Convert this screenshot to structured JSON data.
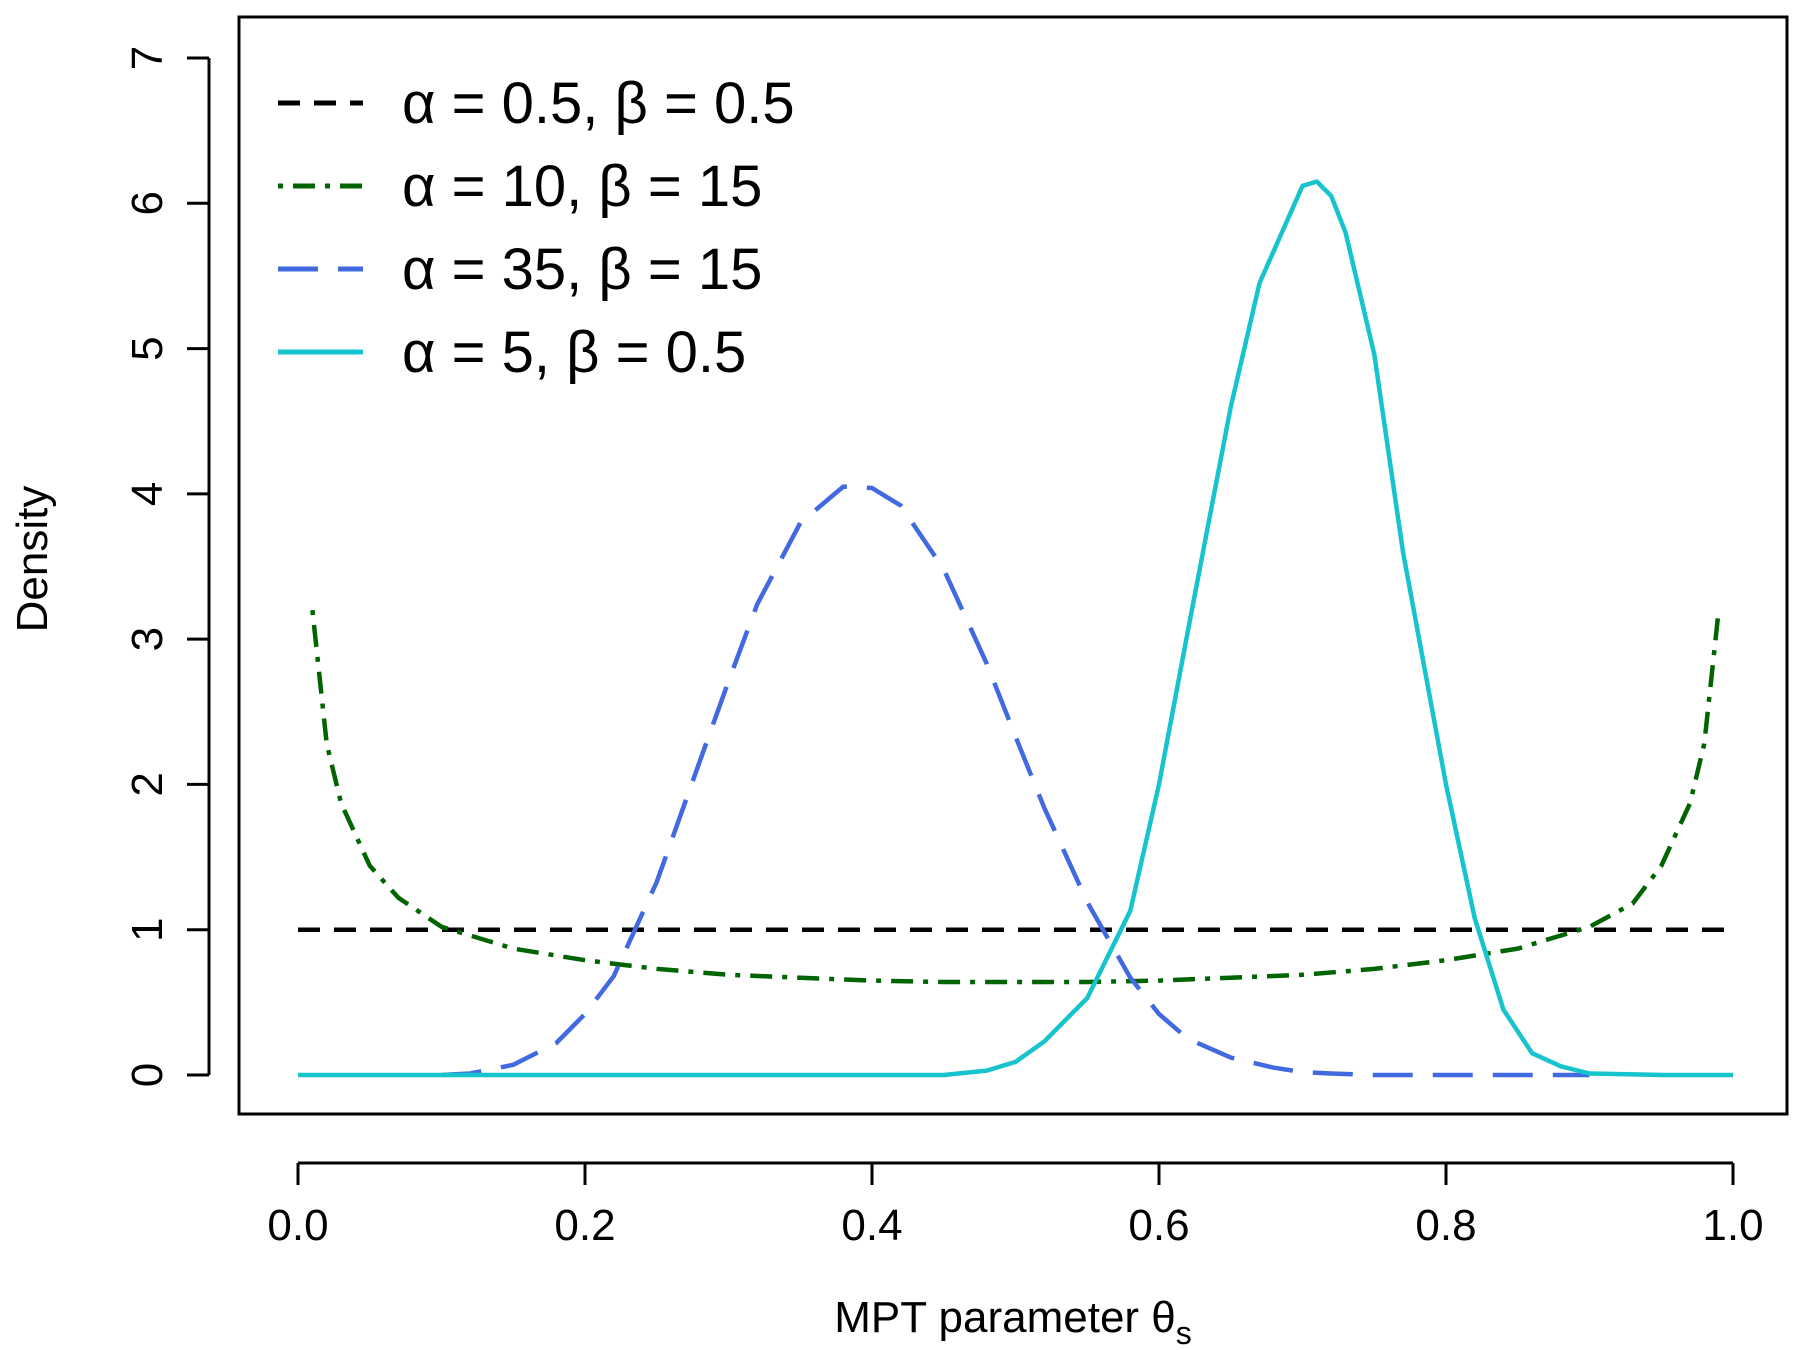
{
  "chart_data": {
    "type": "line",
    "title": "",
    "xlabel": "MPT parameter θ",
    "xlabel_subscript": "s",
    "ylabel": "Density",
    "xlim": [
      0.0,
      1.0
    ],
    "ylim": [
      0,
      7
    ],
    "x_ticks": [
      0.0,
      0.2,
      0.4,
      0.6,
      0.8,
      1.0
    ],
    "x_tick_labels": [
      "0.0",
      "0.2",
      "0.4",
      "0.6",
      "0.8",
      "1.0"
    ],
    "y_ticks": [
      0,
      1,
      2,
      3,
      4,
      5,
      6,
      7
    ],
    "y_tick_labels": [
      "0",
      "1",
      "2",
      "3",
      "4",
      "5",
      "6",
      "7"
    ],
    "grid": false,
    "legend_position": "top-left",
    "series": [
      {
        "name": "α = 0.5, β = 0.5",
        "color": "#000000",
        "dash": "dashed",
        "x": [
          0.0,
          0.1,
          0.2,
          0.3,
          0.4,
          0.5,
          0.6,
          0.7,
          0.8,
          0.9,
          1.0
        ],
        "y": [
          1.0,
          1.0,
          1.0,
          1.0,
          1.0,
          1.0,
          1.0,
          1.0,
          1.0,
          1.0,
          1.0
        ]
      },
      {
        "name": "α = 10, β = 15",
        "color": "#006400",
        "dash": "dotdash",
        "x": [
          0.01,
          0.02,
          0.03,
          0.05,
          0.07,
          0.1,
          0.15,
          0.2,
          0.25,
          0.3,
          0.35,
          0.4,
          0.45,
          0.5,
          0.55,
          0.6,
          0.65,
          0.7,
          0.75,
          0.8,
          0.85,
          0.9,
          0.93,
          0.95,
          0.97,
          0.98,
          0.99
        ],
        "y": [
          3.2,
          2.28,
          1.87,
          1.44,
          1.22,
          1.02,
          0.87,
          0.79,
          0.73,
          0.69,
          0.67,
          0.65,
          0.64,
          0.64,
          0.64,
          0.65,
          0.67,
          0.69,
          0.73,
          0.79,
          0.87,
          1.02,
          1.18,
          1.44,
          1.87,
          2.28,
          3.2
        ]
      },
      {
        "name": "α = 35, β = 15",
        "color": "#4169E1",
        "dash": "longdash",
        "x": [
          0.1,
          0.12,
          0.15,
          0.18,
          0.2,
          0.22,
          0.25,
          0.28,
          0.3,
          0.32,
          0.35,
          0.38,
          0.4,
          0.42,
          0.45,
          0.48,
          0.5,
          0.52,
          0.55,
          0.58,
          0.6,
          0.62,
          0.65,
          0.68,
          0.7,
          0.72,
          0.75,
          0.8,
          0.85,
          0.9
        ],
        "y": [
          0.0,
          0.01,
          0.07,
          0.22,
          0.42,
          0.68,
          1.33,
          2.16,
          2.71,
          3.24,
          3.8,
          4.05,
          4.04,
          3.92,
          3.48,
          2.83,
          2.33,
          1.84,
          1.19,
          0.67,
          0.42,
          0.25,
          0.12,
          0.05,
          0.02,
          0.01,
          0.0,
          0.0,
          0.0,
          0.0
        ]
      },
      {
        "name": "α = 5, β = 0.5",
        "color": "#17C3CC",
        "dash": "solid",
        "x": [
          0.0,
          0.1,
          0.2,
          0.3,
          0.4,
          0.45,
          0.48,
          0.5,
          0.52,
          0.55,
          0.58,
          0.6,
          0.62,
          0.65,
          0.67,
          0.7,
          0.71,
          0.72,
          0.73,
          0.75,
          0.77,
          0.8,
          0.82,
          0.84,
          0.86,
          0.88,
          0.9,
          0.95,
          1.0
        ],
        "y": [
          0.0,
          0.0,
          0.0,
          0.0,
          0.0,
          0.0,
          0.03,
          0.09,
          0.23,
          0.53,
          1.13,
          2.0,
          3.05,
          4.6,
          5.45,
          6.12,
          6.15,
          6.05,
          5.8,
          4.96,
          3.6,
          2.0,
          1.08,
          0.45,
          0.15,
          0.06,
          0.01,
          0.0,
          0.0
        ]
      }
    ]
  }
}
